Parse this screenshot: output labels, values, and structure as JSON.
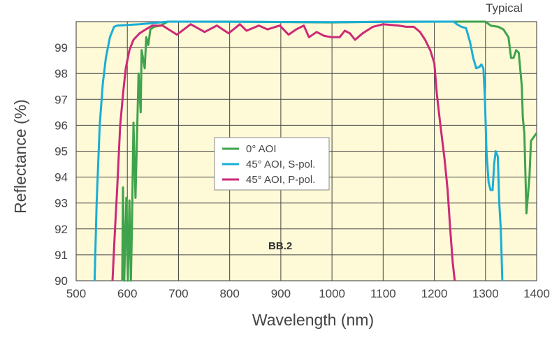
{
  "chart_data": {
    "type": "line",
    "title": "",
    "corner_label": "Typical",
    "annotation": "BB.2",
    "xlabel": "Wavelength (nm)",
    "ylabel": "Reflectance (%)",
    "xlim": [
      500,
      1400
    ],
    "ylim": [
      90,
      100
    ],
    "xticks": [
      500,
      600,
      700,
      800,
      900,
      1000,
      1100,
      1200,
      1300,
      1400
    ],
    "yticks": [
      90,
      91,
      92,
      93,
      94,
      95,
      96,
      97,
      98,
      99
    ],
    "grid": true,
    "legend_placement": "center",
    "series": [
      {
        "name": "0° AOI",
        "color": "#3fa34d",
        "points": [
          [
            590,
            90
          ],
          [
            591.5,
            93.6
          ],
          [
            594,
            90
          ],
          [
            598,
            93.2
          ],
          [
            601,
            90
          ],
          [
            604,
            93.1
          ],
          [
            607,
            90
          ],
          [
            609,
            92
          ],
          [
            612,
            96.1
          ],
          [
            616,
            93.2
          ],
          [
            622,
            98
          ],
          [
            626,
            96.5
          ],
          [
            628,
            98.9
          ],
          [
            634,
            98.2
          ],
          [
            637,
            99.4
          ],
          [
            641,
            99.1
          ],
          [
            645,
            99.7
          ],
          [
            652,
            99.8
          ],
          [
            665,
            99.85
          ],
          [
            679,
            100
          ],
          [
            800,
            100
          ],
          [
            1000,
            99.97
          ],
          [
            1100,
            100
          ],
          [
            1300,
            100
          ],
          [
            1310,
            99.85
          ],
          [
            1325,
            99.8
          ],
          [
            1335,
            99.7
          ],
          [
            1345,
            99.4
          ],
          [
            1350,
            98.6
          ],
          [
            1355,
            98.6
          ],
          [
            1360,
            98.9
          ],
          [
            1365,
            98.8
          ],
          [
            1371,
            97.5
          ],
          [
            1373,
            96.3
          ],
          [
            1376,
            95.7
          ],
          [
            1380,
            92.6
          ],
          [
            1386,
            94
          ],
          [
            1389,
            95.4
          ],
          [
            1400,
            95.7
          ]
        ]
      },
      {
        "name": "45° AOI, S-pol.",
        "color": "#1aaed6",
        "points": [
          [
            536,
            90
          ],
          [
            540,
            93
          ],
          [
            546,
            96
          ],
          [
            552,
            97.6
          ],
          [
            558,
            98.6
          ],
          [
            566,
            99.4
          ],
          [
            574,
            99.8
          ],
          [
            580,
            99.85
          ],
          [
            624,
            99.9
          ],
          [
            680,
            100
          ],
          [
            1000,
            99.98
          ],
          [
            1238,
            100
          ],
          [
            1244,
            99.9
          ],
          [
            1253,
            99.8
          ],
          [
            1262,
            99.75
          ],
          [
            1270,
            99.2
          ],
          [
            1276,
            98.6
          ],
          [
            1282,
            98.2
          ],
          [
            1288,
            98.25
          ],
          [
            1292,
            98.35
          ],
          [
            1296,
            98.2
          ],
          [
            1299,
            97
          ],
          [
            1302,
            95
          ],
          [
            1306,
            93.8
          ],
          [
            1310,
            93.5
          ],
          [
            1314,
            93.5
          ],
          [
            1317,
            94.5
          ],
          [
            1320,
            95
          ],
          [
            1324,
            94.8
          ],
          [
            1327,
            93
          ],
          [
            1330,
            92
          ],
          [
            1333,
            90
          ]
        ]
      },
      {
        "name": "45° AOI, P-pol.",
        "color": "#cc2a78",
        "points": [
          [
            571,
            90
          ],
          [
            576,
            92
          ],
          [
            580,
            93.5
          ],
          [
            586,
            96
          ],
          [
            592,
            97.3
          ],
          [
            597,
            98.2
          ],
          [
            604,
            98.9
          ],
          [
            612,
            99.3
          ],
          [
            624,
            99.55
          ],
          [
            636,
            99.7
          ],
          [
            649,
            99.85
          ],
          [
            669,
            99.85
          ],
          [
            697,
            99.5
          ],
          [
            724,
            99.9
          ],
          [
            751,
            99.6
          ],
          [
            775,
            99.85
          ],
          [
            798,
            99.55
          ],
          [
            820,
            99.9
          ],
          [
            833,
            99.65
          ],
          [
            857,
            99.85
          ],
          [
            874,
            99.7
          ],
          [
            898,
            99.85
          ],
          [
            915,
            99.5
          ],
          [
            930,
            99.7
          ],
          [
            945,
            99.85
          ],
          [
            955,
            99.4
          ],
          [
            970,
            99.6
          ],
          [
            985,
            99.45
          ],
          [
            1000,
            99.4
          ],
          [
            1015,
            99.4
          ],
          [
            1025,
            99.65
          ],
          [
            1035,
            99.55
          ],
          [
            1045,
            99.3
          ],
          [
            1060,
            99.55
          ],
          [
            1080,
            99.8
          ],
          [
            1100,
            99.9
          ],
          [
            1130,
            99.85
          ],
          [
            1145,
            99.8
          ],
          [
            1160,
            99.8
          ],
          [
            1172,
            99.6
          ],
          [
            1182,
            99.3
          ],
          [
            1192,
            98.9
          ],
          [
            1200,
            98.4
          ],
          [
            1205,
            97.2
          ],
          [
            1212,
            96
          ],
          [
            1220,
            94.7
          ],
          [
            1226,
            93.5
          ],
          [
            1231,
            92
          ],
          [
            1236,
            90.7
          ],
          [
            1240,
            90
          ]
        ]
      }
    ]
  }
}
